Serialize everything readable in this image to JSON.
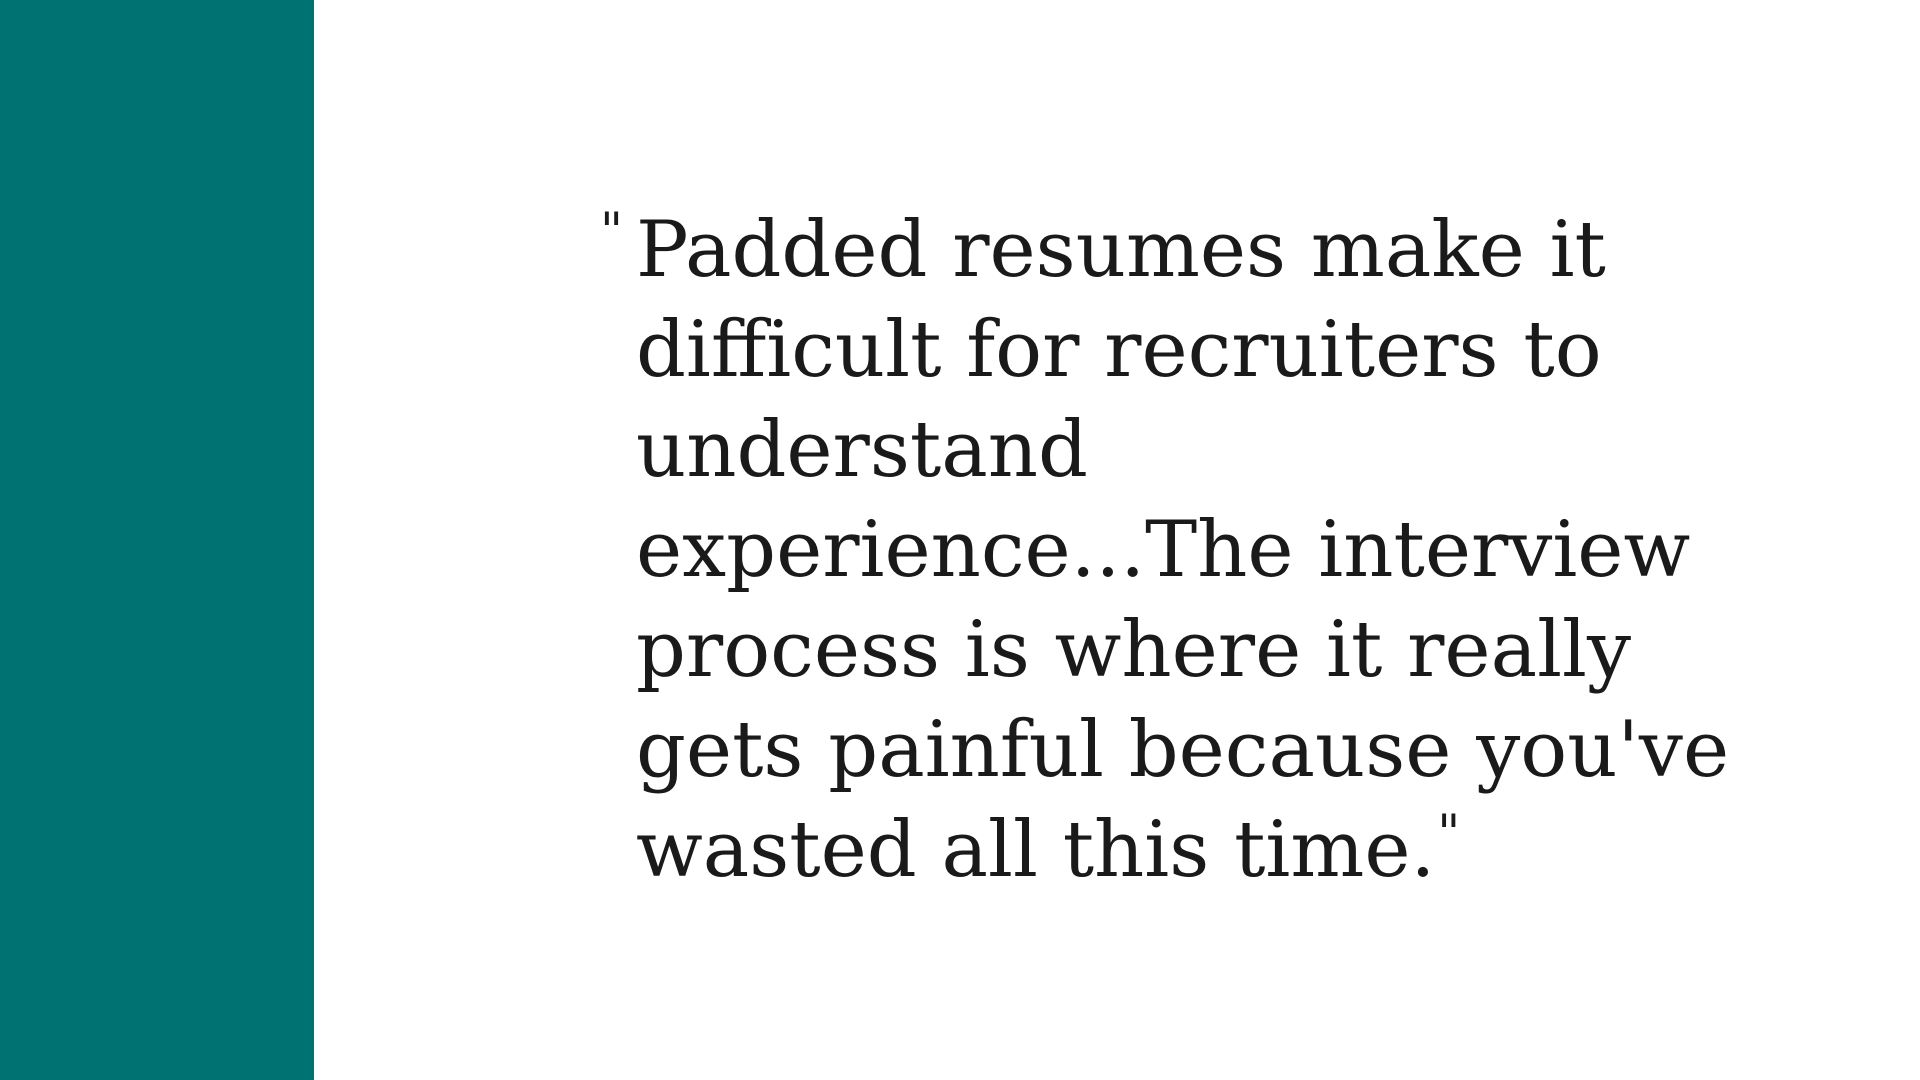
{
  "slide": {
    "accent_color": "#007272",
    "quote": {
      "open_mark": "\"",
      "text": "Padded resumes make it difficult for recruiters to understand experience...The interview process is where it really gets painful because you've wasted all this time.",
      "close_mark": "\""
    }
  }
}
